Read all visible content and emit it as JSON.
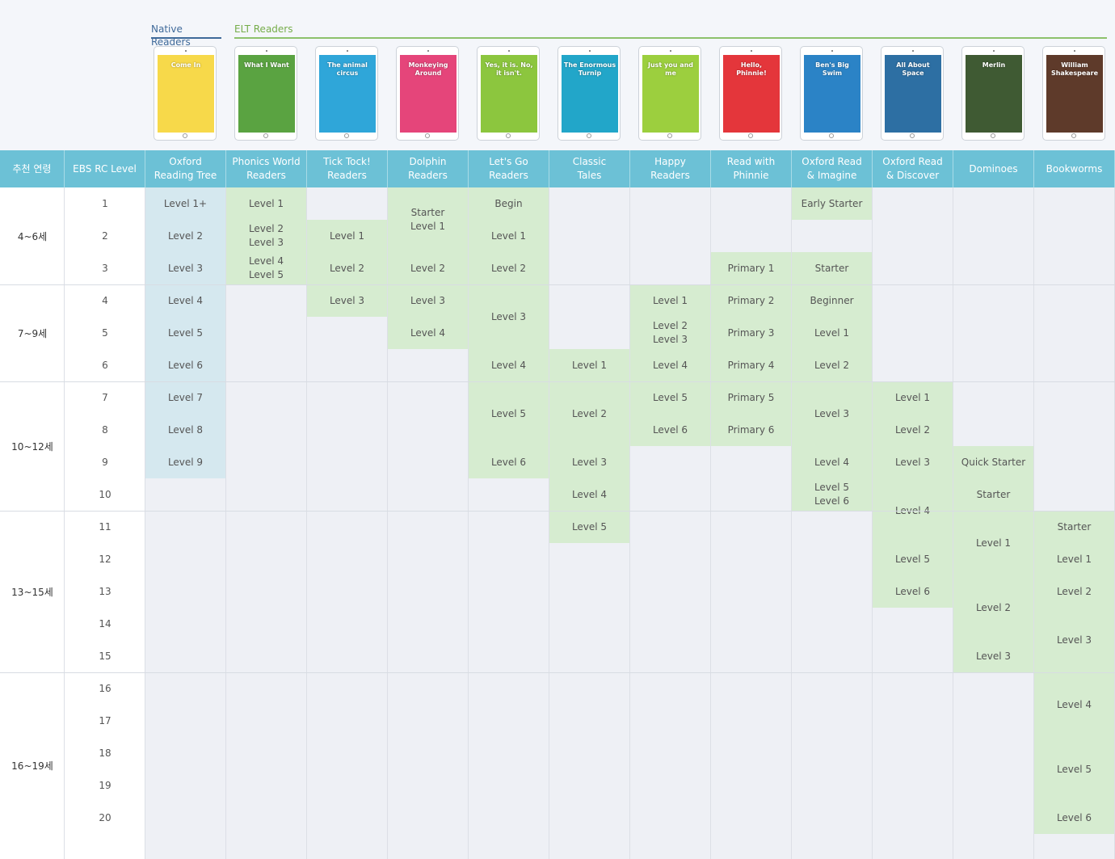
{
  "tabs": {
    "native": "Native Readers",
    "elt": "ELT Readers"
  },
  "headers": {
    "age": "추천 연령",
    "ebs": "EBS RC Level"
  },
  "series": [
    {
      "name": "Oxford\nReading Tree",
      "cover_color": "#f7d94a",
      "cover_text": "Come In",
      "cells": [
        {
          "r": 1,
          "label": "Level 1+"
        },
        {
          "r": 2,
          "label": "Level 2"
        },
        {
          "r": 3,
          "label": "Level 3"
        },
        {
          "r": 4,
          "label": "Level 4"
        },
        {
          "r": 5,
          "label": "Level 5"
        },
        {
          "r": 6,
          "label": "Level 6"
        },
        {
          "r": 7,
          "label": "Level 7"
        },
        {
          "r": 8,
          "label": "Level 8"
        },
        {
          "r": 9,
          "label": "Level 9"
        }
      ]
    },
    {
      "name": "Phonics World\nReaders",
      "cover_color": "#5aa341",
      "cover_text": "What I Want",
      "cells": [
        {
          "r": 1,
          "label": "Level 1"
        },
        {
          "r": 2,
          "label": "Level 2\nLevel 3"
        },
        {
          "r": 3,
          "label": "Level 4\nLevel 5"
        }
      ]
    },
    {
      "name": "Tick Tock!\nReaders",
      "cover_color": "#2fa6d9",
      "cover_text": "The animal circus",
      "cells": [
        {
          "r": 2,
          "label": "Level 1"
        },
        {
          "r": 3,
          "label": "Level 2"
        },
        {
          "r": 4,
          "label": "Level 3"
        }
      ]
    },
    {
      "name": "Dolphin\nReaders",
      "cover_color": "#e5457a",
      "cover_text": "Monkeying Around",
      "cells": [
        {
          "r": 1,
          "span": 2,
          "label": "Starter\nLevel 1"
        },
        {
          "r": 3,
          "label": "Level 2"
        },
        {
          "r": 4,
          "label": "Level 3"
        },
        {
          "r": 5,
          "label": "Level 4"
        }
      ]
    },
    {
      "name": "Let's Go\nReaders",
      "cover_color": "#8cc63e",
      "cover_text": "Yes, it is. No, it isn't.",
      "cells": [
        {
          "r": 1,
          "label": "Begin"
        },
        {
          "r": 2,
          "label": "Level 1"
        },
        {
          "r": 3,
          "label": "Level 2"
        },
        {
          "r": 4,
          "span": 2,
          "label": "Level 3"
        },
        {
          "r": 6,
          "label": "Level 4"
        },
        {
          "r": 7,
          "span": 2,
          "label": "Level 5"
        },
        {
          "r": 9,
          "label": "Level 6"
        }
      ]
    },
    {
      "name": "Classic\nTales",
      "cover_color": "#22a6c9",
      "cover_text": "The Enormous Turnip",
      "cells": [
        {
          "r": 6,
          "label": "Level 1"
        },
        {
          "r": 7,
          "span": 2,
          "label": "Level 2"
        },
        {
          "r": 9,
          "label": "Level 3"
        },
        {
          "r": 10,
          "label": "Level 4"
        },
        {
          "r": 11,
          "label": "Level 5"
        }
      ]
    },
    {
      "name": "Happy\nReaders",
      "cover_color": "#9ccf3e",
      "cover_text": "Just you and me",
      "cells": [
        {
          "r": 4,
          "label": "Level 1"
        },
        {
          "r": 5,
          "label": "Level 2\nLevel 3"
        },
        {
          "r": 6,
          "label": "Level 4"
        },
        {
          "r": 7,
          "label": "Level 5"
        },
        {
          "r": 8,
          "label": "Level 6"
        }
      ]
    },
    {
      "name": "Read with\nPhinnie",
      "cover_color": "#e4363b",
      "cover_text": "Hello, Phinnie!",
      "cells": [
        {
          "r": 3,
          "label": "Primary 1"
        },
        {
          "r": 4,
          "label": "Primary 2"
        },
        {
          "r": 5,
          "label": "Primary 3"
        },
        {
          "r": 6,
          "label": "Primary 4"
        },
        {
          "r": 7,
          "label": "Primary 5"
        },
        {
          "r": 8,
          "label": "Primary 6"
        }
      ]
    },
    {
      "name": "Oxford Read\n& Imagine",
      "cover_color": "#2b83c6",
      "cover_text": "Ben's Big Swim",
      "cells": [
        {
          "r": 1,
          "label": "Early Starter"
        },
        {
          "r": 3,
          "label": "Starter"
        },
        {
          "r": 4,
          "label": "Beginner"
        },
        {
          "r": 5,
          "label": "Level 1"
        },
        {
          "r": 6,
          "label": "Level 2"
        },
        {
          "r": 7,
          "span": 2,
          "label": "Level 3"
        },
        {
          "r": 9,
          "label": "Level 4"
        },
        {
          "r": 10,
          "label": "Level 5\nLevel 6"
        }
      ]
    },
    {
      "name": "Oxford Read\n& Discover",
      "cover_color": "#2d6fa3",
      "cover_text": "All About Space",
      "cells": [
        {
          "r": 7,
          "label": "Level 1"
        },
        {
          "r": 8,
          "label": "Level 2"
        },
        {
          "r": 9,
          "label": "Level 3"
        },
        {
          "r": 10,
          "span": 2,
          "label": "Level 4"
        },
        {
          "r": 12,
          "label": "Level 5"
        },
        {
          "r": 13,
          "label": "Level 6"
        }
      ]
    },
    {
      "name": "Dominoes",
      "cover_color": "#3f5a33",
      "cover_text": "Merlin",
      "cells": [
        {
          "r": 9,
          "label": "Quick Starter"
        },
        {
          "r": 10,
          "label": "Starter"
        },
        {
          "r": 11,
          "span": 2,
          "label": "Level 1"
        },
        {
          "r": 13,
          "span": 2,
          "label": "Level 2"
        },
        {
          "r": 15,
          "label": "Level 3"
        }
      ]
    },
    {
      "name": "Bookworms",
      "cover_color": "#5e3a2a",
      "cover_text": "William Shakespeare",
      "cells": [
        {
          "r": 11,
          "label": "Starter"
        },
        {
          "r": 12,
          "label": "Level 1"
        },
        {
          "r": 13,
          "label": "Level 2"
        },
        {
          "r": 14,
          "span": 2,
          "label": "Level 3"
        },
        {
          "r": 16,
          "span": 2,
          "label": "Level 4"
        },
        {
          "r": 18,
          "span": 2,
          "label": "Level 5"
        },
        {
          "r": 20,
          "label": "Level 6"
        }
      ]
    }
  ],
  "ages": [
    {
      "label": "4~6세",
      "from": 1,
      "to": 3
    },
    {
      "label": "7~9세",
      "from": 4,
      "to": 6
    },
    {
      "label": "10~12세",
      "from": 7,
      "to": 10
    },
    {
      "label": "13~15세",
      "from": 11,
      "to": 15
    },
    {
      "label": "16~19세",
      "from": 16,
      "to": 20
    }
  ],
  "levels": [
    "1",
    "2",
    "3",
    "4",
    "5",
    "6",
    "7",
    "8",
    "9",
    "10",
    "11",
    "12",
    "13",
    "14",
    "15",
    "16",
    "17",
    "18",
    "19",
    "20"
  ]
}
